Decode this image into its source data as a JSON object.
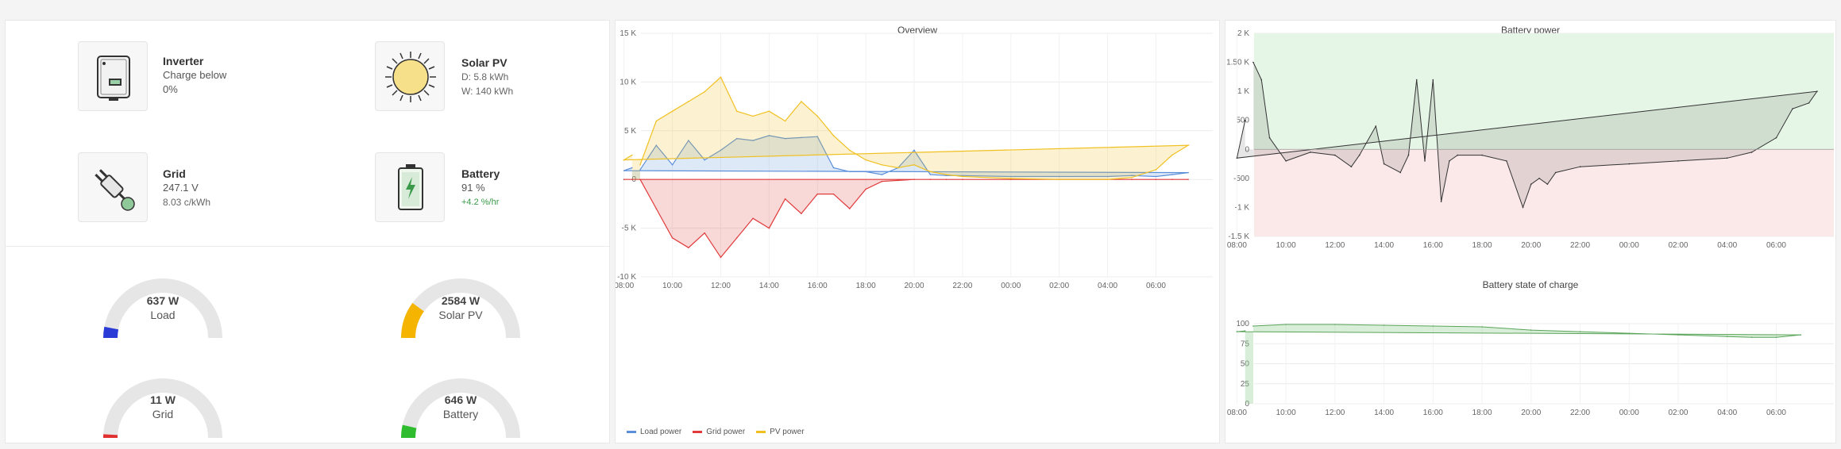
{
  "status": {
    "inverter": {
      "name": "Inverter",
      "line1": "Charge below",
      "line2": "0%"
    },
    "solar": {
      "name": "Solar PV",
      "line1": "D: 5.8 kWh",
      "line2": "W: 140 kWh"
    },
    "grid": {
      "name": "Grid",
      "line1": "247.1 V",
      "line2": "8.03 c/kWh"
    },
    "battery": {
      "name": "Battery",
      "line1": "91 %",
      "line2": "+4.2 %/hr"
    },
    "icons": {
      "inverter": "inverter-icon",
      "solar": "sun-icon",
      "grid": "plug-icon",
      "battery": "battery-icon"
    }
  },
  "gauges": [
    {
      "value": "637 W",
      "label": "Load",
      "fraction": 0.06,
      "color": "#2b3bd6"
    },
    {
      "value": "2584 W",
      "label": "Solar PV",
      "fraction": 0.2,
      "color": "#f5b400"
    },
    {
      "value": "11 W",
      "label": "Grid",
      "fraction": 0.005,
      "color": "#e03030"
    },
    {
      "value": "646 W",
      "label": "Battery",
      "fraction": 0.07,
      "color": "#2fbd2f"
    }
  ],
  "overview": {
    "title": "Overview",
    "legend": [
      {
        "name": "Load power",
        "color": "#5b8fd9"
      },
      {
        "name": "Grid power",
        "color": "#e03a3a"
      },
      {
        "name": "PV power",
        "color": "#f0c020"
      }
    ]
  },
  "battery_power": {
    "title": "Battery power"
  },
  "battery_soc": {
    "title": "Battery state of charge"
  },
  "chart_data": [
    {
      "type": "line",
      "title": "Overview",
      "ylim": [
        -10000,
        15000
      ],
      "y_ticks": [
        "15 K",
        "10 K",
        "5 K",
        "0",
        "-5 K",
        "-10 K"
      ],
      "x_ticks": [
        "10:00",
        "12:00",
        "14:00",
        "16:00",
        "18:00",
        "20:00",
        "22:00",
        "00:00",
        "02:00",
        "04:00",
        "06:00",
        "08:00"
      ],
      "x": [
        "08:40",
        "09:20",
        "10:00",
        "10:40",
        "11:20",
        "12:00",
        "12:40",
        "13:20",
        "14:00",
        "14:40",
        "15:20",
        "16:00",
        "16:40",
        "17:20",
        "18:00",
        "18:40",
        "19:20",
        "20:00",
        "20:40",
        "21:20",
        "22:00",
        "00:00",
        "02:00",
        "04:00",
        "05:00",
        "06:00",
        "06:40",
        "07:20",
        "08:00",
        "08:20"
      ],
      "series": [
        {
          "name": "Load power",
          "color": "#5b8fd9",
          "values": [
            1000,
            3500,
            1500,
            4000,
            2000,
            3000,
            4200,
            4000,
            4500,
            4200,
            4300,
            4400,
            1200,
            800,
            800,
            500,
            1200,
            3000,
            500,
            400,
            400,
            300,
            300,
            300,
            400,
            300,
            500,
            700,
            900,
            1200
          ]
        },
        {
          "name": "Grid power",
          "color": "#e03a3a",
          "values": [
            0,
            -3000,
            -6000,
            -7000,
            -5500,
            -8000,
            -6000,
            -4000,
            -5000,
            -2000,
            -3500,
            -1500,
            -1500,
            -3000,
            -1000,
            -200,
            -100,
            0,
            0,
            0,
            0,
            0,
            0,
            0,
            0,
            0,
            0,
            0,
            0,
            0
          ]
        },
        {
          "name": "PV power",
          "color": "#f0c020",
          "values": [
            1500,
            6000,
            7000,
            8000,
            9000,
            10500,
            7000,
            6500,
            7000,
            6000,
            8000,
            6500,
            4500,
            3000,
            2000,
            1500,
            1200,
            1500,
            800,
            500,
            300,
            100,
            0,
            0,
            200,
            1000,
            2500,
            3500,
            2000,
            2500
          ]
        }
      ]
    },
    {
      "type": "area",
      "title": "Battery power",
      "ylim": [
        -1500,
        2000
      ],
      "y_ticks": [
        "2 K",
        "1.50 K",
        "1 K",
        "500",
        "0",
        "-500",
        "-1 K",
        "-1.5 K"
      ],
      "x_ticks": [
        "10:00",
        "12:00",
        "14:00",
        "16:00",
        "18:00",
        "20:00",
        "22:00",
        "00:00",
        "02:00",
        "04:00",
        "06:00",
        "08:00"
      ],
      "x": [
        "08:40",
        "09:00",
        "09:20",
        "09:40",
        "10:00",
        "11:00",
        "12:00",
        "12:40",
        "13:00",
        "13:40",
        "14:00",
        "14:40",
        "15:00",
        "15:20",
        "15:40",
        "16:00",
        "16:20",
        "16:40",
        "17:00",
        "18:00",
        "19:00",
        "19:40",
        "20:00",
        "20:20",
        "20:40",
        "21:00",
        "22:00",
        "00:00",
        "02:00",
        "04:00",
        "05:00",
        "06:00",
        "06:40",
        "07:20",
        "07:40",
        "08:00",
        "08:20"
      ],
      "series": [
        {
          "name": "",
          "values": [
            1500,
            1200,
            200,
            0,
            -200,
            -50,
            -100,
            -300,
            -100,
            400,
            -250,
            -400,
            -100,
            1200,
            -200,
            1200,
            -900,
            -200,
            -100,
            -100,
            -200,
            -1000,
            -600,
            -500,
            -600,
            -400,
            -300,
            -250,
            -200,
            -150,
            -50,
            200,
            700,
            800,
            1000,
            -150,
            500
          ]
        }
      ]
    },
    {
      "type": "area",
      "title": "Battery state of charge",
      "ylim": [
        0,
        100
      ],
      "y_ticks": [
        "100",
        "75",
        "50",
        "25",
        "0"
      ],
      "x_ticks": [
        "10:00",
        "12:00",
        "14:00",
        "16:00",
        "18:00",
        "20:00",
        "22:00",
        "00:00",
        "02:00",
        "04:00",
        "06:00",
        "08:00"
      ],
      "x": [
        "08:40",
        "10:00",
        "12:00",
        "14:00",
        "16:00",
        "18:00",
        "20:00",
        "22:00",
        "00:00",
        "02:00",
        "04:00",
        "05:00",
        "06:00",
        "07:00",
        "08:00",
        "08:20"
      ],
      "series": [
        {
          "name": "",
          "values": [
            97,
            99,
            99,
            98,
            97,
            96,
            92,
            90,
            88,
            86,
            84,
            83,
            83,
            86,
            90,
            91
          ]
        }
      ]
    }
  ]
}
